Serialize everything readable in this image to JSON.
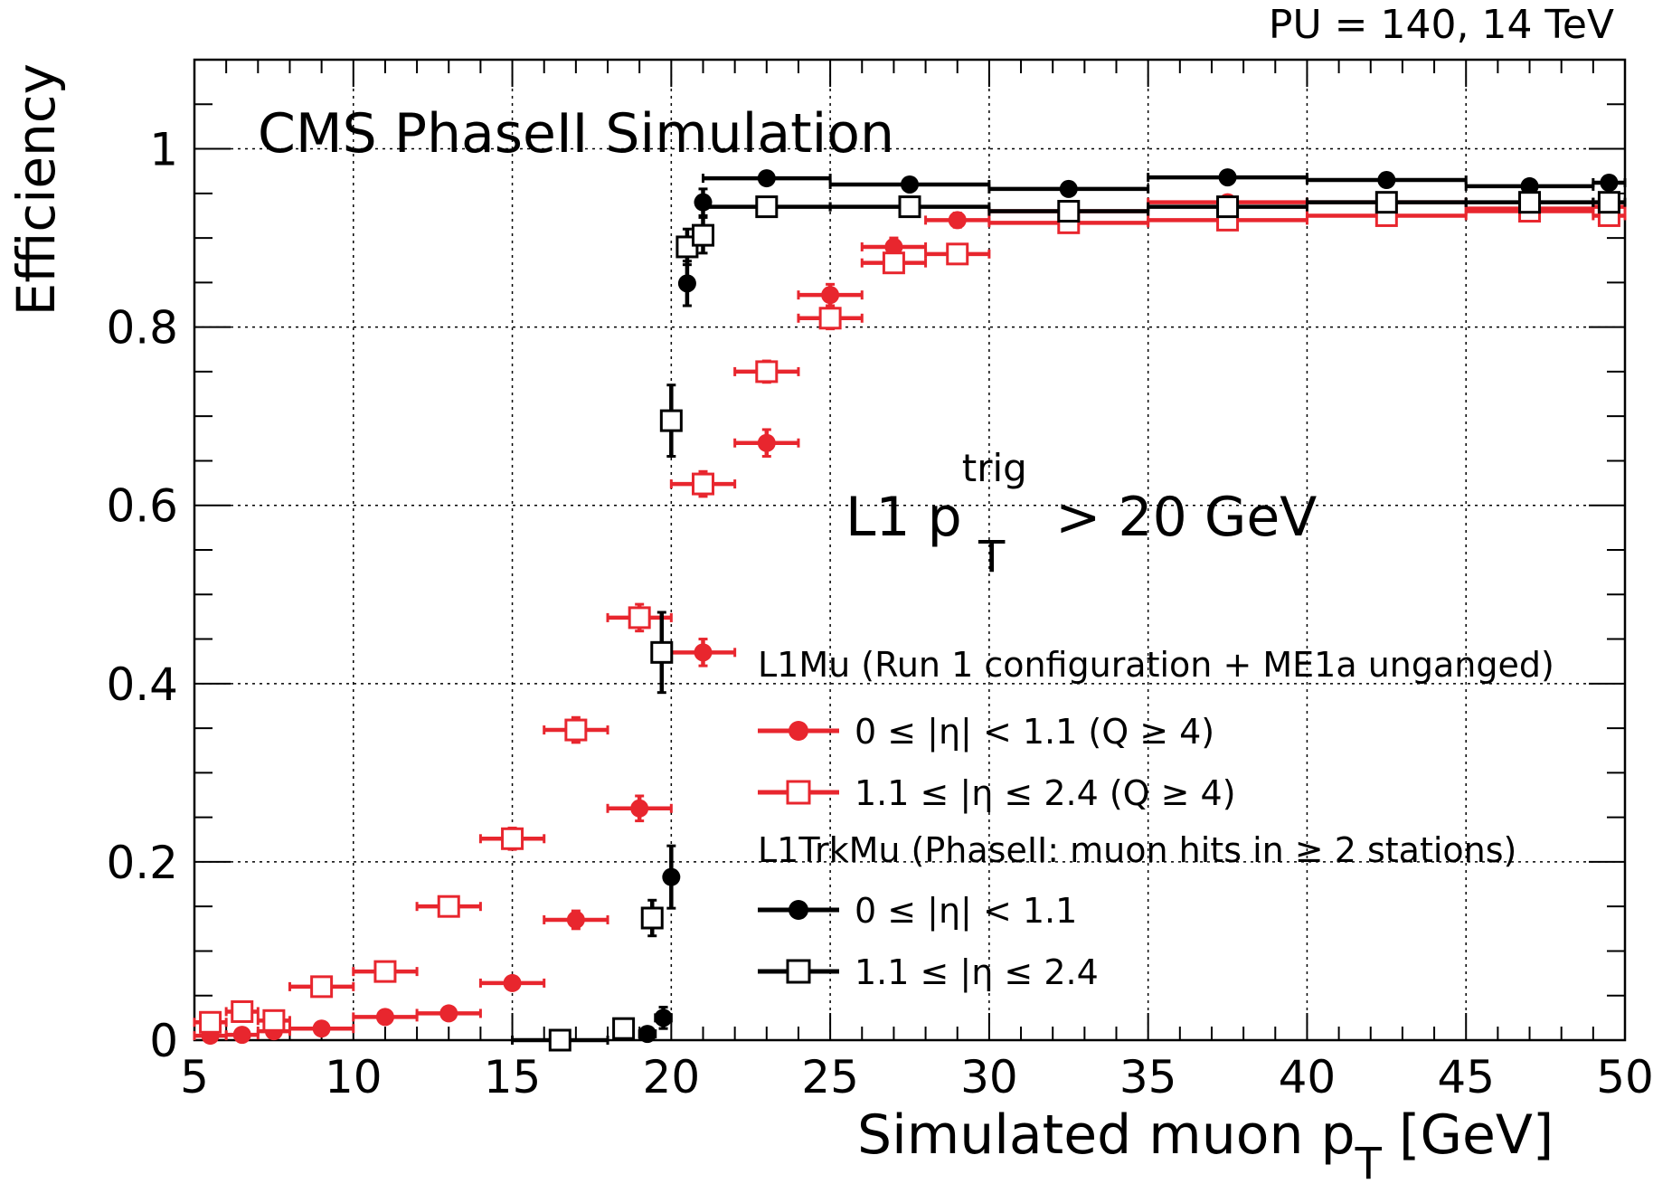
{
  "chart_data": {
    "type": "scatter",
    "top_right_label": "PU = 140, 14 TeV",
    "title": "CMS PhaseII Simulation",
    "annotation": {
      "main": "L1 p",
      "sup": "trig",
      "sub": "T",
      "rest": " > 20 GeV"
    },
    "xlabel": {
      "main": "Simulated muon p",
      "sub": "T",
      "unit": "  [GeV]"
    },
    "ylabel": "Efficiency",
    "xlim": [
      5,
      50
    ],
    "ylim": [
      0,
      1.1
    ],
    "xticks": [
      5,
      10,
      15,
      20,
      25,
      30,
      35,
      40,
      45,
      50
    ],
    "yticks": [
      0,
      0.2,
      0.4,
      0.6,
      0.8,
      1
    ],
    "yticklabels": [
      "0",
      "0.2",
      "0.4",
      "0.6",
      "0.8",
      "1"
    ],
    "grid": true,
    "legend_position": "center-right",
    "legend": {
      "header1": "L1Mu (Run 1 configuration + ME1a unganged)",
      "entry1": "0  ≤ |η| < 1.1  (Q ≥ 4)",
      "entry2": "1.1 ≤ |η  ≤ 2.4 (Q ≥ 4)",
      "header2": "L1TrkMu (PhaseII: muon hits in ≥ 2 stations)",
      "entry3": "0   ≤ |η| < 1.1",
      "entry4": "1.1 ≤ |η  ≤ 2.4"
    },
    "colors": {
      "red": "#e8262e",
      "black": "#000000"
    },
    "series": [
      {
        "marker": "filled-circle",
        "color": "#e8262e",
        "points": [
          {
            "x": 5.5,
            "y": 0.005,
            "xerr": 0.5,
            "yerr": 0.003
          },
          {
            "x": 6.5,
            "y": 0.006,
            "xerr": 0.5,
            "yerr": 0.003
          },
          {
            "x": 7.5,
            "y": 0.01,
            "xerr": 0.5,
            "yerr": 0.003
          },
          {
            "x": 9.0,
            "y": 0.013,
            "xerr": 1.0,
            "yerr": 0.004
          },
          {
            "x": 11.0,
            "y": 0.026,
            "xerr": 1.0,
            "yerr": 0.005
          },
          {
            "x": 13.0,
            "y": 0.03,
            "xerr": 1.0,
            "yerr": 0.006
          },
          {
            "x": 15.0,
            "y": 0.064,
            "xerr": 1.0,
            "yerr": 0.007
          },
          {
            "x": 17.0,
            "y": 0.135,
            "xerr": 1.0,
            "yerr": 0.01
          },
          {
            "x": 19.0,
            "y": 0.26,
            "xerr": 1.0,
            "yerr": 0.014
          },
          {
            "x": 21.0,
            "y": 0.435,
            "xerr": 1.0,
            "yerr": 0.015
          },
          {
            "x": 23.0,
            "y": 0.67,
            "xerr": 1.0,
            "yerr": 0.015
          },
          {
            "x": 25.0,
            "y": 0.836,
            "xerr": 1.0,
            "yerr": 0.012
          },
          {
            "x": 27.0,
            "y": 0.89,
            "xerr": 1.0,
            "yerr": 0.01
          },
          {
            "x": 29.0,
            "y": 0.92,
            "xerr": 1.0,
            "yerr": 0.008
          },
          {
            "x": 32.5,
            "y": 0.93,
            "xerr": 2.5,
            "yerr": 0.006
          },
          {
            "x": 37.5,
            "y": 0.94,
            "xerr": 2.5,
            "yerr": 0.006
          },
          {
            "x": 42.5,
            "y": 0.94,
            "xerr": 2.5,
            "yerr": 0.006
          },
          {
            "x": 47.0,
            "y": 0.933,
            "xerr": 2.0,
            "yerr": 0.006
          },
          {
            "x": 49.5,
            "y": 0.935,
            "xerr": 0.5,
            "yerr": 0.006
          }
        ]
      },
      {
        "marker": "open-square",
        "color": "#e8262e",
        "points": [
          {
            "x": 5.5,
            "y": 0.02,
            "xerr": 0.5,
            "yerr": 0.004
          },
          {
            "x": 6.5,
            "y": 0.032,
            "xerr": 0.5,
            "yerr": 0.005
          },
          {
            "x": 7.5,
            "y": 0.022,
            "xerr": 0.5,
            "yerr": 0.004
          },
          {
            "x": 9.0,
            "y": 0.06,
            "xerr": 1.0,
            "yerr": 0.007
          },
          {
            "x": 11.0,
            "y": 0.077,
            "xerr": 1.0,
            "yerr": 0.008
          },
          {
            "x": 13.0,
            "y": 0.15,
            "xerr": 1.0,
            "yerr": 0.01
          },
          {
            "x": 15.0,
            "y": 0.226,
            "xerr": 1.0,
            "yerr": 0.012
          },
          {
            "x": 17.0,
            "y": 0.348,
            "xerr": 1.0,
            "yerr": 0.014
          },
          {
            "x": 19.0,
            "y": 0.474,
            "xerr": 1.0,
            "yerr": 0.015
          },
          {
            "x": 21.0,
            "y": 0.624,
            "xerr": 1.0,
            "yerr": 0.014
          },
          {
            "x": 23.0,
            "y": 0.75,
            "xerr": 1.0,
            "yerr": 0.012
          },
          {
            "x": 25.0,
            "y": 0.81,
            "xerr": 1.0,
            "yerr": 0.012
          },
          {
            "x": 27.0,
            "y": 0.872,
            "xerr": 1.0,
            "yerr": 0.01
          },
          {
            "x": 29.0,
            "y": 0.882,
            "xerr": 1.0,
            "yerr": 0.01
          },
          {
            "x": 32.5,
            "y": 0.917,
            "xerr": 2.5,
            "yerr": 0.007
          },
          {
            "x": 37.5,
            "y": 0.92,
            "xerr": 2.5,
            "yerr": 0.007
          },
          {
            "x": 42.5,
            "y": 0.925,
            "xerr": 2.5,
            "yerr": 0.007
          },
          {
            "x": 47.0,
            "y": 0.93,
            "xerr": 2.0,
            "yerr": 0.007
          },
          {
            "x": 49.5,
            "y": 0.925,
            "xerr": 0.5,
            "yerr": 0.007
          }
        ]
      },
      {
        "marker": "filled-circle",
        "color": "#000000",
        "points": [
          {
            "x": 16.5,
            "y": 0.0,
            "xerr": 1.5,
            "yerr": 0.002
          },
          {
            "x": 19.25,
            "y": 0.007,
            "xerr": 0.25,
            "yerr": 0.003
          },
          {
            "x": 19.75,
            "y": 0.025,
            "xerr": 0.25,
            "yerr": 0.012
          },
          {
            "x": 20.0,
            "y": 0.183,
            "xerr": 0.0,
            "yerr": 0.035
          },
          {
            "x": 20.5,
            "y": 0.849,
            "xerr": 0.0,
            "yerr": 0.025
          },
          {
            "x": 21.0,
            "y": 0.94,
            "xerr": 0.0,
            "yerr": 0.015
          },
          {
            "x": 23.0,
            "y": 0.967,
            "xerr": 2.0,
            "yerr": 0.006
          },
          {
            "x": 27.5,
            "y": 0.96,
            "xerr": 2.5,
            "yerr": 0.006
          },
          {
            "x": 32.5,
            "y": 0.955,
            "xerr": 2.5,
            "yerr": 0.006
          },
          {
            "x": 37.5,
            "y": 0.968,
            "xerr": 2.5,
            "yerr": 0.006
          },
          {
            "x": 42.5,
            "y": 0.965,
            "xerr": 2.5,
            "yerr": 0.006
          },
          {
            "x": 47.0,
            "y": 0.958,
            "xerr": 2.0,
            "yerr": 0.006
          },
          {
            "x": 49.5,
            "y": 0.962,
            "xerr": 0.5,
            "yerr": 0.006
          }
        ]
      },
      {
        "marker": "open-square",
        "color": "#000000",
        "points": [
          {
            "x": 16.5,
            "y": 0.0,
            "xerr": 0.25,
            "yerr": 0.002
          },
          {
            "x": 18.5,
            "y": 0.013,
            "xerr": 0.0,
            "yerr": 0.004
          },
          {
            "x": 19.4,
            "y": 0.137,
            "xerr": 0.0,
            "yerr": 0.02
          },
          {
            "x": 19.7,
            "y": 0.435,
            "xerr": 0.0,
            "yerr": 0.045
          },
          {
            "x": 20.0,
            "y": 0.695,
            "xerr": 0.0,
            "yerr": 0.04
          },
          {
            "x": 20.5,
            "y": 0.89,
            "xerr": 0.0,
            "yerr": 0.02
          },
          {
            "x": 21.0,
            "y": 0.903,
            "xerr": 0.0,
            "yerr": 0.02
          },
          {
            "x": 23.0,
            "y": 0.935,
            "xerr": 2.0,
            "yerr": 0.006
          },
          {
            "x": 27.5,
            "y": 0.935,
            "xerr": 2.5,
            "yerr": 0.006
          },
          {
            "x": 32.5,
            "y": 0.93,
            "xerr": 2.5,
            "yerr": 0.006
          },
          {
            "x": 37.5,
            "y": 0.935,
            "xerr": 2.5,
            "yerr": 0.006
          },
          {
            "x": 42.5,
            "y": 0.94,
            "xerr": 2.5,
            "yerr": 0.006
          },
          {
            "x": 47.0,
            "y": 0.94,
            "xerr": 2.0,
            "yerr": 0.006
          },
          {
            "x": 49.5,
            "y": 0.94,
            "xerr": 0.5,
            "yerr": 0.006
          }
        ]
      }
    ]
  }
}
